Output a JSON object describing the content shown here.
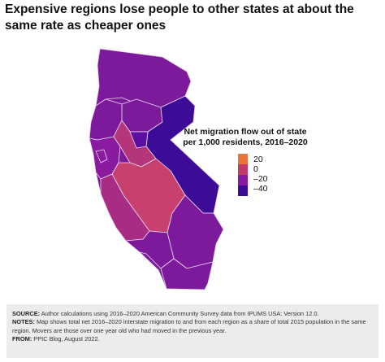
{
  "title": "Expensive regions lose people to other states at about the same rate as cheaper ones",
  "legend": {
    "title_line1": "Net migration flow out of state",
    "title_line2": "per 1,000 residents, 2016–2020",
    "ticks": [
      "20",
      "0",
      "–20",
      "–40"
    ],
    "colors": [
      "#e8743b",
      "#c13a6a",
      "#8a1aa0",
      "#3c0c96"
    ]
  },
  "colors": {
    "state_base": "#7d1a9c",
    "sacramento": "#5a0fa0",
    "bay_area": "#8a1aa0",
    "central_valley_north": "#b5357a",
    "central_valley_south": "#c8406e",
    "central_coast": "#a82c84",
    "sierra_east": "#3c0c96",
    "border": "#e8d8ee"
  },
  "notes": {
    "source_label": "SOURCE:",
    "source_text": "Author calculations using 2016–2020 American Community Survey data from IPUMS USA: Version 12.0.",
    "notes_label": "NOTES:",
    "notes_text": "Map shows total net 2016–2020 interstate migration to and from each region as a share of total 2015 population in the same region. Movers are those over one year old who had moved in the previous year.",
    "from_label": "FROM:",
    "from_text": "PPIC Blog, August 2022."
  }
}
